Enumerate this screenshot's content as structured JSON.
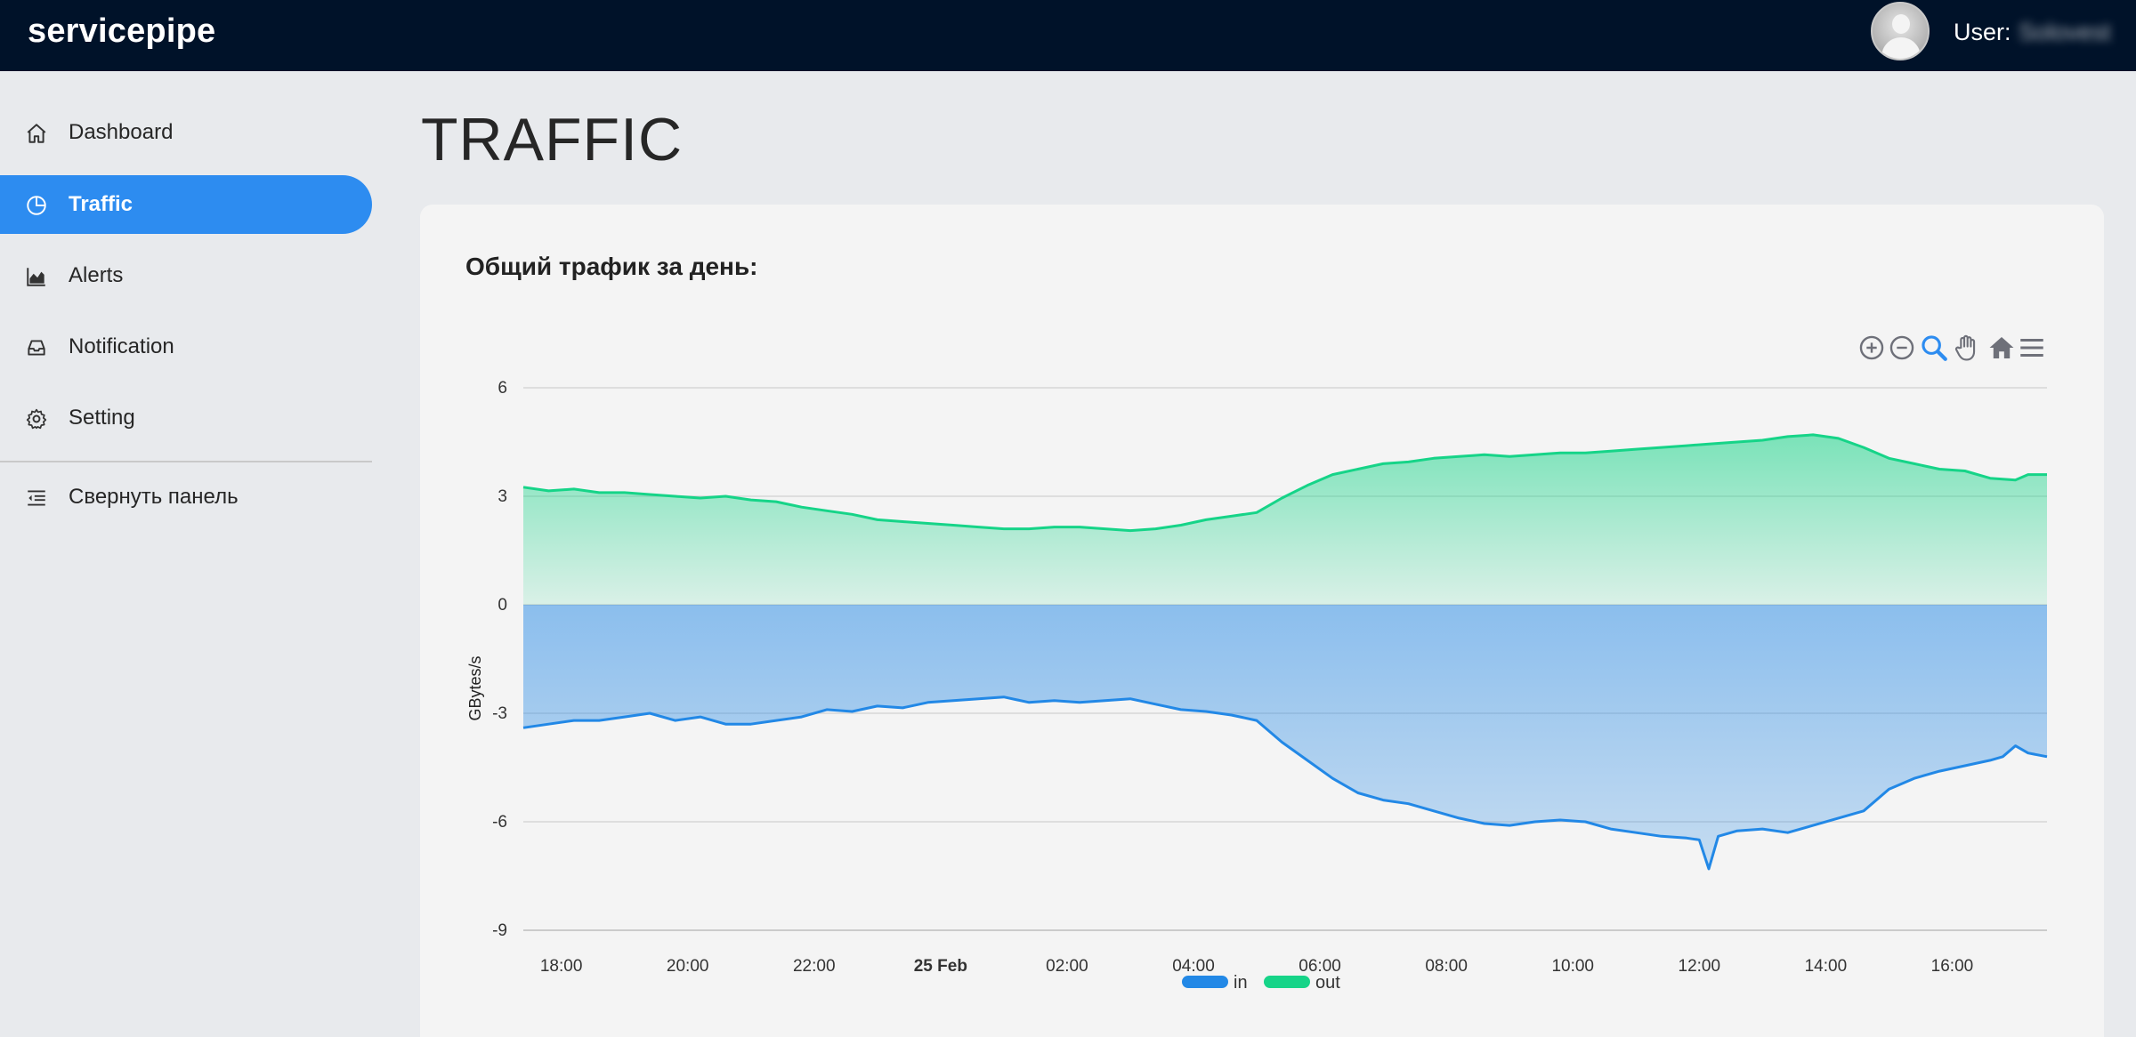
{
  "header": {
    "brand": "servicepipe",
    "user_label": "User:",
    "user_name": "Solovest"
  },
  "sidebar": {
    "items": [
      {
        "label": "Dashboard",
        "icon": "home-icon",
        "active": false
      },
      {
        "label": "Traffic",
        "icon": "pie-chart-icon",
        "active": true
      },
      {
        "label": "Alerts",
        "icon": "area-chart-icon",
        "active": false
      },
      {
        "label": "Notification",
        "icon": "inbox-icon",
        "active": false
      },
      {
        "label": "Setting",
        "icon": "gear-icon",
        "active": false
      }
    ],
    "collapse_label": "Свернуть панель",
    "collapse_icon": "collapse-menu-icon"
  },
  "page": {
    "title": "TRAFFIC",
    "card_title": "Общий трафик за день:"
  },
  "toolbar": {
    "icons": [
      "zoom-in-icon",
      "zoom-out-icon",
      "zoom-selection-icon",
      "pan-hand-icon",
      "reset-home-icon",
      "menu-icon"
    ],
    "accent_color": "#2d8cf0"
  },
  "colors": {
    "accent": "#2d8cf0",
    "topbar": "#001229",
    "in_series": "#2288e6",
    "out_series": "#16d488"
  },
  "chart_data": {
    "type": "area",
    "ylabel": "GBytes/s",
    "ylim": [
      -9,
      6
    ],
    "yticks": [
      6,
      3,
      0,
      -3,
      -6,
      -9
    ],
    "xlim_hours": [
      17.4,
      41.5
    ],
    "xtick_labels": [
      {
        "at": 18,
        "label": "18:00",
        "bold": false
      },
      {
        "at": 20,
        "label": "20:00",
        "bold": false
      },
      {
        "at": 22,
        "label": "22:00",
        "bold": false
      },
      {
        "at": 24,
        "label": "25 Feb",
        "bold": true
      },
      {
        "at": 26,
        "label": "02:00",
        "bold": false
      },
      {
        "at": 28,
        "label": "04:00",
        "bold": false
      },
      {
        "at": 30,
        "label": "06:00",
        "bold": false
      },
      {
        "at": 32,
        "label": "08:00",
        "bold": false
      },
      {
        "at": 34,
        "label": "10:00",
        "bold": false
      },
      {
        "at": 36,
        "label": "12:00",
        "bold": false
      },
      {
        "at": 38,
        "label": "14:00",
        "bold": false
      },
      {
        "at": 40,
        "label": "16:00",
        "bold": false
      }
    ],
    "grid": true,
    "legend": "bottom-center",
    "series": [
      {
        "name": "in",
        "color": "#2288e6",
        "points": [
          [
            17.4,
            -3.4
          ],
          [
            17.8,
            -3.3
          ],
          [
            18.2,
            -3.2
          ],
          [
            18.6,
            -3.2
          ],
          [
            19.0,
            -3.1
          ],
          [
            19.4,
            -3.0
          ],
          [
            19.8,
            -3.2
          ],
          [
            20.2,
            -3.1
          ],
          [
            20.6,
            -3.3
          ],
          [
            21.0,
            -3.3
          ],
          [
            21.4,
            -3.2
          ],
          [
            21.8,
            -3.1
          ],
          [
            22.2,
            -2.9
          ],
          [
            22.6,
            -2.95
          ],
          [
            23.0,
            -2.8
          ],
          [
            23.4,
            -2.85
          ],
          [
            23.8,
            -2.7
          ],
          [
            24.2,
            -2.65
          ],
          [
            24.6,
            -2.6
          ],
          [
            25.0,
            -2.55
          ],
          [
            25.4,
            -2.7
          ],
          [
            25.8,
            -2.65
          ],
          [
            26.2,
            -2.7
          ],
          [
            26.6,
            -2.65
          ],
          [
            27.0,
            -2.6
          ],
          [
            27.4,
            -2.75
          ],
          [
            27.8,
            -2.9
          ],
          [
            28.2,
            -2.95
          ],
          [
            28.6,
            -3.05
          ],
          [
            29.0,
            -3.2
          ],
          [
            29.4,
            -3.8
          ],
          [
            29.8,
            -4.3
          ],
          [
            30.2,
            -4.8
          ],
          [
            30.6,
            -5.2
          ],
          [
            31.0,
            -5.4
          ],
          [
            31.4,
            -5.5
          ],
          [
            31.8,
            -5.7
          ],
          [
            32.2,
            -5.9
          ],
          [
            32.6,
            -6.05
          ],
          [
            33.0,
            -6.1
          ],
          [
            33.4,
            -6.0
          ],
          [
            33.8,
            -5.95
          ],
          [
            34.2,
            -6.0
          ],
          [
            34.6,
            -6.2
          ],
          [
            35.0,
            -6.3
          ],
          [
            35.4,
            -6.4
          ],
          [
            35.8,
            -6.45
          ],
          [
            36.0,
            -6.5
          ],
          [
            36.15,
            -7.3
          ],
          [
            36.3,
            -6.4
          ],
          [
            36.6,
            -6.25
          ],
          [
            37.0,
            -6.2
          ],
          [
            37.4,
            -6.3
          ],
          [
            37.8,
            -6.1
          ],
          [
            38.2,
            -5.9
          ],
          [
            38.6,
            -5.7
          ],
          [
            39.0,
            -5.1
          ],
          [
            39.4,
            -4.8
          ],
          [
            39.8,
            -4.6
          ],
          [
            40.2,
            -4.45
          ],
          [
            40.6,
            -4.3
          ],
          [
            40.8,
            -4.2
          ],
          [
            41.0,
            -3.9
          ],
          [
            41.2,
            -4.1
          ],
          [
            41.5,
            -4.2
          ]
        ]
      },
      {
        "name": "out",
        "color": "#16d488",
        "points": [
          [
            17.4,
            3.25
          ],
          [
            17.8,
            3.15
          ],
          [
            18.2,
            3.2
          ],
          [
            18.6,
            3.1
          ],
          [
            19.0,
            3.1
          ],
          [
            19.4,
            3.05
          ],
          [
            19.8,
            3.0
          ],
          [
            20.2,
            2.95
          ],
          [
            20.6,
            3.0
          ],
          [
            21.0,
            2.9
          ],
          [
            21.4,
            2.85
          ],
          [
            21.8,
            2.7
          ],
          [
            22.2,
            2.6
          ],
          [
            22.6,
            2.5
          ],
          [
            23.0,
            2.35
          ],
          [
            23.4,
            2.3
          ],
          [
            23.8,
            2.25
          ],
          [
            24.2,
            2.2
          ],
          [
            24.6,
            2.15
          ],
          [
            25.0,
            2.1
          ],
          [
            25.4,
            2.1
          ],
          [
            25.8,
            2.15
          ],
          [
            26.2,
            2.15
          ],
          [
            26.6,
            2.1
          ],
          [
            27.0,
            2.05
          ],
          [
            27.4,
            2.1
          ],
          [
            27.8,
            2.2
          ],
          [
            28.2,
            2.35
          ],
          [
            28.6,
            2.45
          ],
          [
            29.0,
            2.55
          ],
          [
            29.4,
            2.95
          ],
          [
            29.8,
            3.3
          ],
          [
            30.2,
            3.6
          ],
          [
            30.6,
            3.75
          ],
          [
            31.0,
            3.9
          ],
          [
            31.4,
            3.95
          ],
          [
            31.8,
            4.05
          ],
          [
            32.2,
            4.1
          ],
          [
            32.6,
            4.15
          ],
          [
            33.0,
            4.1
          ],
          [
            33.4,
            4.15
          ],
          [
            33.8,
            4.2
          ],
          [
            34.2,
            4.2
          ],
          [
            34.6,
            4.25
          ],
          [
            35.0,
            4.3
          ],
          [
            35.4,
            4.35
          ],
          [
            35.8,
            4.4
          ],
          [
            36.2,
            4.45
          ],
          [
            36.6,
            4.5
          ],
          [
            37.0,
            4.55
          ],
          [
            37.4,
            4.65
          ],
          [
            37.8,
            4.7
          ],
          [
            38.2,
            4.6
          ],
          [
            38.6,
            4.35
          ],
          [
            39.0,
            4.05
          ],
          [
            39.4,
            3.9
          ],
          [
            39.8,
            3.75
          ],
          [
            40.2,
            3.7
          ],
          [
            40.6,
            3.5
          ],
          [
            41.0,
            3.45
          ],
          [
            41.2,
            3.6
          ],
          [
            41.5,
            3.6
          ]
        ]
      }
    ]
  }
}
